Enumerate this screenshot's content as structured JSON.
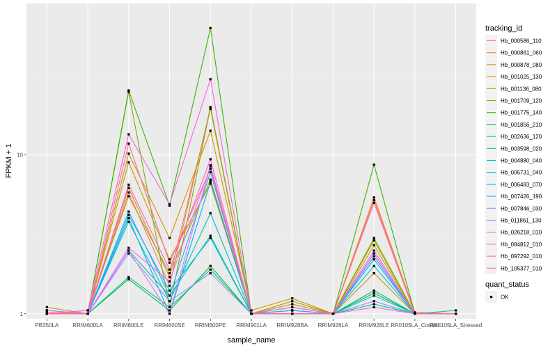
{
  "chart_data": {
    "type": "line",
    "xlabel": "sample_name",
    "ylabel": "FPKM + 1",
    "y_scale": "log",
    "ylim": [
      0.93,
      90
    ],
    "y_ticks": [
      1,
      10
    ],
    "y_tick_labels": [
      "1",
      "10"
    ],
    "grid": true,
    "legend_placement": "right",
    "categories": [
      "PB350LA",
      "RRIM600LA",
      "RRIM600LE",
      "RRIM600SE",
      "RRIM600PE",
      "RRIM901LA",
      "RRIM928BA",
      "RRIM928LA",
      "RRIM928LE",
      "RRII105LA_Control",
      "RRII105LA_Stressed"
    ],
    "legend_title": "tracking_id",
    "series": [
      {
        "name": "Hb_000586_110",
        "color": "#F8766D",
        "values": [
          1.02,
          1.0,
          5.8,
          1.5,
          20.0,
          1.0,
          1.05,
          1.0,
          5.2,
          1.0,
          1.0
        ]
      },
      {
        "name": "Hb_000861_060",
        "color": "#EA8331",
        "values": [
          1.0,
          1.0,
          6.2,
          1.7,
          19.5,
          1.0,
          1.1,
          1.0,
          5.4,
          1.02,
          1.0
        ]
      },
      {
        "name": "Hb_000878_080",
        "color": "#D89000",
        "values": [
          1.05,
          1.0,
          10.2,
          3.0,
          14.2,
          1.05,
          1.25,
          1.0,
          2.7,
          1.0,
          1.0
        ]
      },
      {
        "name": "Hb_001025_130",
        "color": "#C09B00",
        "values": [
          1.1,
          1.0,
          9.0,
          2.2,
          6.6,
          1.0,
          1.15,
          1.0,
          1.8,
          1.0,
          1.0
        ]
      },
      {
        "name": "Hb_001136_080",
        "color": "#A3A500",
        "values": [
          1.0,
          1.05,
          5.5,
          1.8,
          7.0,
          1.0,
          1.2,
          1.0,
          3.0,
          1.0,
          1.0
        ]
      },
      {
        "name": "Hb_001709_120",
        "color": "#7CAE00",
        "values": [
          1.0,
          1.0,
          25.0,
          1.1,
          20.0,
          1.0,
          1.05,
          1.0,
          2.9,
          1.0,
          1.0
        ]
      },
      {
        "name": "Hb_001775_140",
        "color": "#39B600",
        "values": [
          1.0,
          1.0,
          25.5,
          4.8,
          63.0,
          1.0,
          1.0,
          1.0,
          8.7,
          1.0,
          1.0
        ]
      },
      {
        "name": "Hb_001856_210",
        "color": "#00BB4E",
        "values": [
          1.0,
          1.0,
          1.65,
          1.05,
          2.0,
          1.0,
          1.0,
          1.0,
          1.35,
          1.0,
          1.0
        ]
      },
      {
        "name": "Hb_002636_120",
        "color": "#00BF7D",
        "values": [
          1.0,
          1.0,
          1.7,
          1.1,
          1.9,
          1.0,
          1.0,
          1.0,
          1.4,
          1.0,
          1.0
        ]
      },
      {
        "name": "Hb_003598_020",
        "color": "#00C1A3",
        "values": [
          1.0,
          1.0,
          2.5,
          1.3,
          3.1,
          1.0,
          1.05,
          1.0,
          1.15,
          1.0,
          1.0
        ]
      },
      {
        "name": "Hb_004880_040",
        "color": "#00BFC4",
        "values": [
          1.05,
          1.0,
          3.8,
          1.2,
          4.3,
          1.0,
          1.0,
          1.0,
          1.3,
          1.0,
          1.05
        ]
      },
      {
        "name": "Hb_005731_040",
        "color": "#00BAE0",
        "values": [
          1.0,
          1.0,
          4.2,
          1.4,
          3.0,
          1.0,
          1.0,
          1.0,
          2.0,
          1.0,
          1.0
        ]
      },
      {
        "name": "Hb_006483_070",
        "color": "#00B0F6",
        "values": [
          1.0,
          1.0,
          4.0,
          1.0,
          6.8,
          1.0,
          1.0,
          1.0,
          2.2,
          1.0,
          1.0
        ]
      },
      {
        "name": "Hb_007426_190",
        "color": "#35A2FF",
        "values": [
          1.0,
          1.0,
          4.4,
          1.3,
          7.8,
          1.0,
          1.05,
          1.0,
          2.3,
          1.0,
          1.0
        ]
      },
      {
        "name": "Hb_007846_030",
        "color": "#9590FF",
        "values": [
          1.0,
          1.0,
          2.4,
          1.2,
          1.8,
          1.0,
          1.0,
          1.0,
          1.2,
          1.0,
          1.0
        ]
      },
      {
        "name": "Hb_011861_130",
        "color": "#C77CFF",
        "values": [
          1.05,
          1.0,
          2.5,
          1.0,
          8.6,
          1.0,
          1.1,
          1.0,
          2.5,
          1.0,
          1.0
        ]
      },
      {
        "name": "Hb_026218_010",
        "color": "#E76BF3",
        "values": [
          1.0,
          1.0,
          2.6,
          1.6,
          8.5,
          1.0,
          1.1,
          1.0,
          2.4,
          1.0,
          1.0
        ]
      },
      {
        "name": "Hb_084812_010",
        "color": "#FA62DB",
        "values": [
          1.0,
          1.05,
          13.5,
          4.9,
          30.0,
          1.0,
          1.0,
          1.0,
          1.1,
          1.0,
          1.0
        ]
      },
      {
        "name": "Hb_097292_010",
        "color": "#FF62BC",
        "values": [
          1.0,
          1.0,
          6.5,
          1.9,
          9.4,
          1.0,
          1.0,
          1.0,
          2.4,
          1.0,
          1.0
        ]
      },
      {
        "name": "Hb_105377_010",
        "color": "#FF6C91",
        "values": [
          1.0,
          1.0,
          11.8,
          2.1,
          8.2,
          1.0,
          1.0,
          1.0,
          5.0,
          1.0,
          1.0
        ]
      }
    ],
    "legend2_title": "quant_status",
    "legend2_entries": [
      "OK"
    ]
  }
}
